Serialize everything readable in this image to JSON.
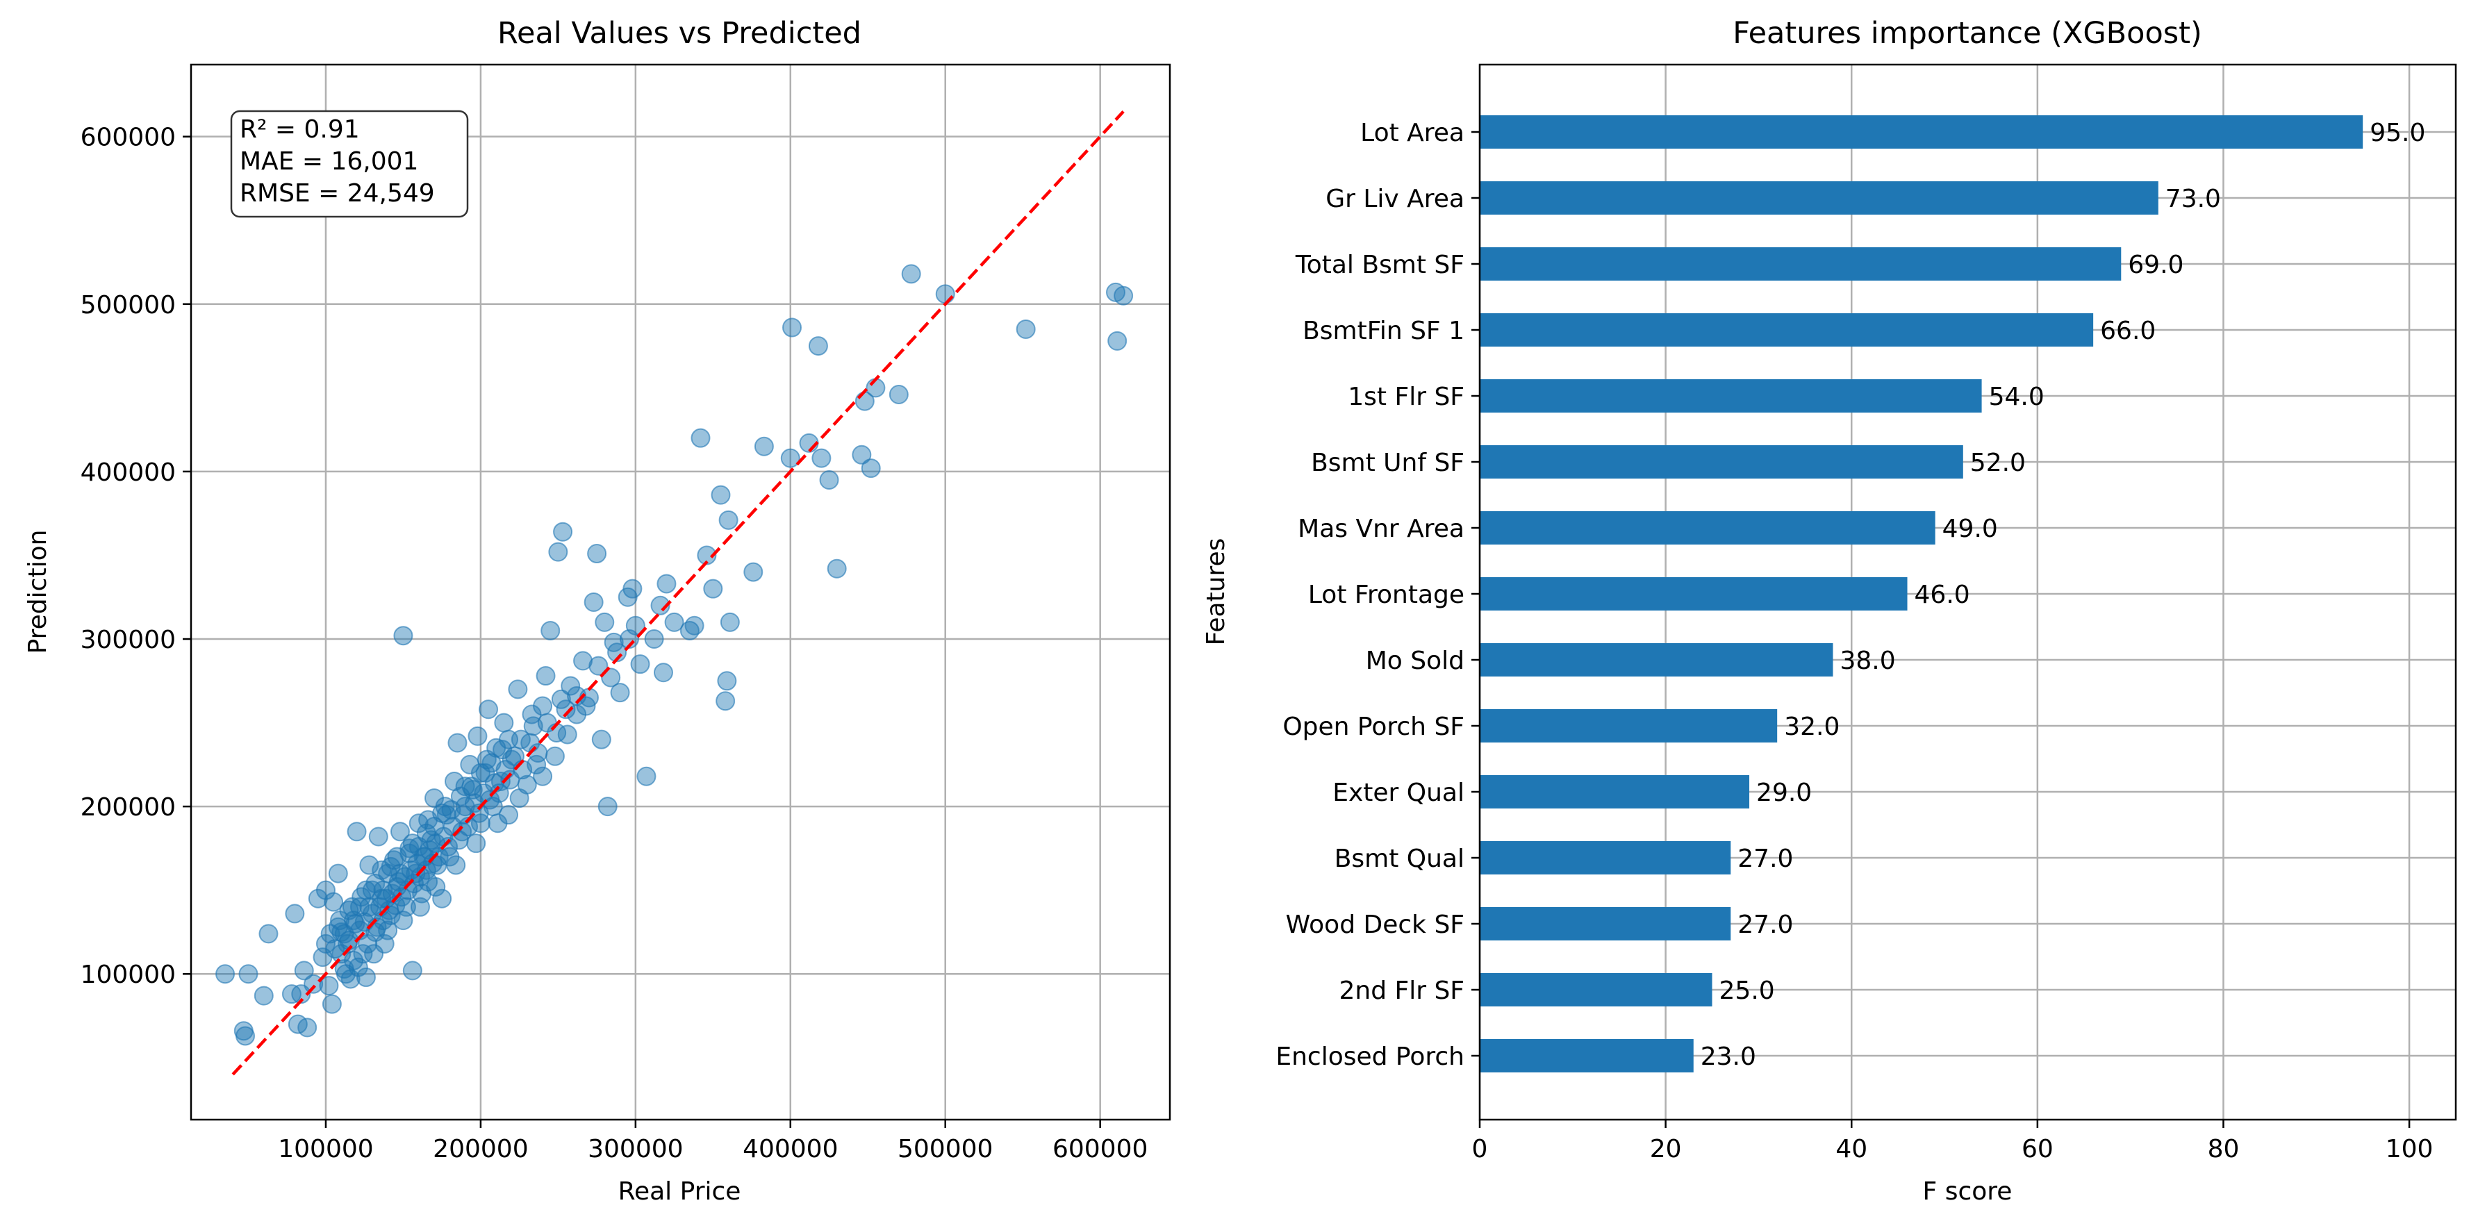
{
  "colors": {
    "point": "#1f77b4",
    "bar": "#1f77b4",
    "ideal_line": "#ff0000",
    "grid": "#b0b0b0"
  },
  "chart_data": [
    {
      "type": "scatter",
      "title": "Real Values vs Predicted",
      "xlabel": "Real Price",
      "ylabel": "Prediction",
      "xlim": [
        13000,
        645000
      ],
      "ylim": [
        13000,
        643000
      ],
      "xticks": [
        100000,
        200000,
        300000,
        400000,
        500000,
        600000
      ],
      "xtick_labels": [
        "100000",
        "200000",
        "300000",
        "400000",
        "500000",
        "600000"
      ],
      "yticks": [
        100000,
        200000,
        300000,
        400000,
        500000,
        600000
      ],
      "ytick_labels": [
        "100000",
        "200000",
        "300000",
        "400000",
        "500000",
        "600000"
      ],
      "grid": true,
      "stats": [
        "R² = 0.91",
        "MAE = 16,001",
        "RMSE = 24,549"
      ],
      "ideal_line": {
        "x": [
          40000,
          615000
        ],
        "y": [
          40000,
          615000
        ]
      },
      "points": [
        [
          35000,
          100000
        ],
        [
          47000,
          66000
        ],
        [
          48000,
          63000
        ],
        [
          50000,
          100000
        ],
        [
          60000,
          87000
        ],
        [
          63000,
          124000
        ],
        [
          78000,
          88000
        ],
        [
          80000,
          136000
        ],
        [
          82000,
          70000
        ],
        [
          84000,
          88000
        ],
        [
          86000,
          102000
        ],
        [
          88000,
          68000
        ],
        [
          92000,
          94000
        ],
        [
          95000,
          145000
        ],
        [
          98000,
          110000
        ],
        [
          100000,
          150000
        ],
        [
          102000,
          93000
        ],
        [
          104000,
          82000
        ],
        [
          105000,
          143000
        ],
        [
          108000,
          160000
        ],
        [
          110000,
          125000
        ],
        [
          112000,
          103000
        ],
        [
          114000,
          118000
        ],
        [
          116000,
          97000
        ],
        [
          118000,
          132000
        ],
        [
          120000,
          185000
        ],
        [
          122000,
          140000
        ],
        [
          124000,
          112000
        ],
        [
          126000,
          98000
        ],
        [
          128000,
          165000
        ],
        [
          130000,
          150000
        ],
        [
          132000,
          125000
        ],
        [
          134000,
          182000
        ],
        [
          136000,
          145000
        ],
        [
          138000,
          118000
        ],
        [
          140000,
          160000
        ],
        [
          142000,
          135000
        ],
        [
          144000,
          168000
        ],
        [
          146000,
          152000
        ],
        [
          148000,
          185000
        ],
        [
          150000,
          302000
        ],
        [
          152000,
          140000
        ],
        [
          154000,
          175000
        ],
        [
          156000,
          102000
        ],
        [
          158000,
          160000
        ],
        [
          160000,
          190000
        ],
        [
          162000,
          148000
        ],
        [
          164000,
          170000
        ],
        [
          166000,
          155000
        ],
        [
          168000,
          180000
        ],
        [
          170000,
          205000
        ],
        [
          172000,
          165000
        ],
        [
          175000,
          145000
        ],
        [
          178000,
          195000
        ],
        [
          180000,
          170000
        ],
        [
          183000,
          215000
        ],
        [
          185000,
          238000
        ],
        [
          188000,
          185000
        ],
        [
          190000,
          200000
        ],
        [
          193000,
          225000
        ],
        [
          195000,
          210000
        ],
        [
          198000,
          242000
        ],
        [
          200000,
          190000
        ],
        [
          203000,
          220000
        ],
        [
          205000,
          258000
        ],
        [
          208000,
          200000
        ],
        [
          210000,
          235000
        ],
        [
          213000,
          215000
        ],
        [
          215000,
          250000
        ],
        [
          218000,
          195000
        ],
        [
          220000,
          228000
        ],
        [
          224000,
          270000
        ],
        [
          226000,
          240000
        ],
        [
          230000,
          213000
        ],
        [
          234000,
          248000
        ],
        [
          236000,
          225000
        ],
        [
          240000,
          260000
        ],
        [
          242000,
          278000
        ],
        [
          245000,
          305000
        ],
        [
          248000,
          230000
        ],
        [
          250000,
          352000
        ],
        [
          252000,
          264000
        ],
        [
          253000,
          364000
        ],
        [
          256000,
          243000
        ],
        [
          258000,
          272000
        ],
        [
          262000,
          255000
        ],
        [
          266000,
          287000
        ],
        [
          270000,
          265000
        ],
        [
          273000,
          322000
        ],
        [
          275000,
          351000
        ],
        [
          278000,
          240000
        ],
        [
          280000,
          310000
        ],
        [
          282000,
          200000
        ],
        [
          284000,
          277000
        ],
        [
          286000,
          298000
        ],
        [
          290000,
          268000
        ],
        [
          295000,
          325000
        ],
        [
          298000,
          330000
        ],
        [
          300000,
          308000
        ],
        [
          303000,
          285000
        ],
        [
          307000,
          218000
        ],
        [
          312000,
          300000
        ],
        [
          316000,
          320000
        ],
        [
          318000,
          280000
        ],
        [
          320000,
          333000
        ],
        [
          325000,
          310000
        ],
        [
          335000,
          305000
        ],
        [
          338000,
          308000
        ],
        [
          342000,
          420000
        ],
        [
          346000,
          350000
        ],
        [
          350000,
          330000
        ],
        [
          355000,
          386000
        ],
        [
          358000,
          263000
        ],
        [
          359000,
          275000
        ],
        [
          360000,
          371000
        ],
        [
          361000,
          310000
        ],
        [
          376000,
          340000
        ],
        [
          383000,
          415000
        ],
        [
          400000,
          408000
        ],
        [
          401000,
          486000
        ],
        [
          412000,
          417000
        ],
        [
          418000,
          475000
        ],
        [
          420000,
          408000
        ],
        [
          425000,
          395000
        ],
        [
          430000,
          342000
        ],
        [
          446000,
          410000
        ],
        [
          448000,
          442000
        ],
        [
          452000,
          402000
        ],
        [
          455000,
          450000
        ],
        [
          470000,
          446000
        ],
        [
          478000,
          518000
        ],
        [
          500000,
          506000
        ],
        [
          552000,
          485000
        ],
        [
          610000,
          507000
        ],
        [
          611000,
          478000
        ],
        [
          615000,
          505000
        ],
        [
          110000,
          112000
        ],
        [
          115000,
          120000
        ],
        [
          118000,
          108000
        ],
        [
          122000,
          126000
        ],
        [
          125000,
          131000
        ],
        [
          127000,
          118000
        ],
        [
          130000,
          136000
        ],
        [
          133000,
          128000
        ],
        [
          135000,
          140000
        ],
        [
          137000,
          132000
        ],
        [
          139000,
          145000
        ],
        [
          141000,
          138000
        ],
        [
          143000,
          148000
        ],
        [
          145000,
          141000
        ],
        [
          147000,
          155000
        ],
        [
          149000,
          146000
        ],
        [
          151000,
          158000
        ],
        [
          153000,
          150000
        ],
        [
          155000,
          162000
        ],
        [
          157000,
          154000
        ],
        [
          159000,
          166000
        ],
        [
          161000,
          158000
        ],
        [
          163000,
          170000
        ],
        [
          165000,
          162000
        ],
        [
          167000,
          174000
        ],
        [
          169000,
          166000
        ],
        [
          171000,
          178000
        ],
        [
          173000,
          170000
        ],
        [
          176000,
          182000
        ],
        [
          179000,
          176000
        ],
        [
          182000,
          188000
        ],
        [
          186000,
          180000
        ],
        [
          189000,
          195000
        ],
        [
          192000,
          188000
        ],
        [
          196000,
          202000
        ],
        [
          199000,
          196000
        ],
        [
          202000,
          208000
        ],
        [
          206000,
          204000
        ],
        [
          209000,
          214000
        ],
        [
          212000,
          208000
        ],
        [
          216000,
          222000
        ],
        [
          219000,
          216000
        ],
        [
          222000,
          230000
        ],
        [
          227000,
          222000
        ],
        [
          232000,
          238000
        ],
        [
          237000,
          232000
        ],
        [
          243000,
          250000
        ],
        [
          249000,
          244000
        ],
        [
          255000,
          258000
        ],
        [
          262000,
          266000
        ],
        [
          268000,
          260000
        ],
        [
          276000,
          284000
        ],
        [
          288000,
          292000
        ],
        [
          296000,
          300000
        ],
        [
          108000,
          128000
        ],
        [
          113000,
          100000
        ],
        [
          117000,
          140000
        ],
        [
          121000,
          104000
        ],
        [
          126000,
          150000
        ],
        [
          131000,
          112000
        ],
        [
          136000,
          162000
        ],
        [
          140000,
          126000
        ],
        [
          146000,
          170000
        ],
        [
          150000,
          132000
        ],
        [
          156000,
          178000
        ],
        [
          161000,
          140000
        ],
        [
          166000,
          192000
        ],
        [
          171000,
          152000
        ],
        [
          177000,
          200000
        ],
        [
          184000,
          165000
        ],
        [
          190000,
          212000
        ],
        [
          197000,
          178000
        ],
        [
          204000,
          228000
        ],
        [
          211000,
          190000
        ],
        [
          218000,
          240000
        ],
        [
          225000,
          205000
        ],
        [
          233000,
          255000
        ],
        [
          240000,
          218000
        ],
        [
          100000,
          118000
        ],
        [
          103000,
          124000
        ],
        [
          106000,
          115000
        ],
        [
          109000,
          132000
        ],
        [
          112000,
          124000
        ],
        [
          115000,
          138000
        ],
        [
          119000,
          130000
        ],
        [
          123000,
          146000
        ],
        [
          128000,
          140000
        ],
        [
          132000,
          154000
        ],
        [
          137000,
          150000
        ],
        [
          142000,
          164000
        ],
        [
          148000,
          160000
        ],
        [
          154000,
          172000
        ],
        [
          160000,
          176000
        ],
        [
          165000,
          184000
        ],
        [
          170000,
          188000
        ],
        [
          175000,
          196000
        ],
        [
          181000,
          198000
        ],
        [
          187000,
          206000
        ],
        [
          194000,
          212000
        ],
        [
          200000,
          220000
        ],
        [
          207000,
          226000
        ],
        [
          214000,
          234000
        ]
      ]
    },
    {
      "type": "bar",
      "orientation": "horizontal",
      "title": "Features importance (XGBoost)",
      "xlabel": "F score",
      "ylabel": "Features",
      "xlim": [
        0,
        105
      ],
      "xticks": [
        0,
        20,
        40,
        60,
        80,
        100
      ],
      "xtick_labels": [
        "0",
        "20",
        "40",
        "60",
        "80",
        "100"
      ],
      "grid": true,
      "categories": [
        "Lot Area",
        "Gr Liv Area",
        "Total Bsmt SF",
        "BsmtFin SF 1",
        "1st Flr SF",
        "Bsmt Unf SF",
        "Mas Vnr Area",
        "Lot Frontage",
        "Mo Sold",
        "Open Porch SF",
        "Exter Qual",
        "Bsmt Qual",
        "Wood Deck SF",
        "2nd Flr SF",
        "Enclosed Porch"
      ],
      "values": [
        95,
        73,
        69,
        66,
        54,
        52,
        49,
        46,
        38,
        32,
        29,
        27,
        27,
        25,
        23
      ],
      "value_labels": [
        "95.0",
        "73.0",
        "69.0",
        "66.0",
        "54.0",
        "52.0",
        "49.0",
        "46.0",
        "38.0",
        "32.0",
        "29.0",
        "27.0",
        "27.0",
        "25.0",
        "23.0"
      ]
    }
  ]
}
